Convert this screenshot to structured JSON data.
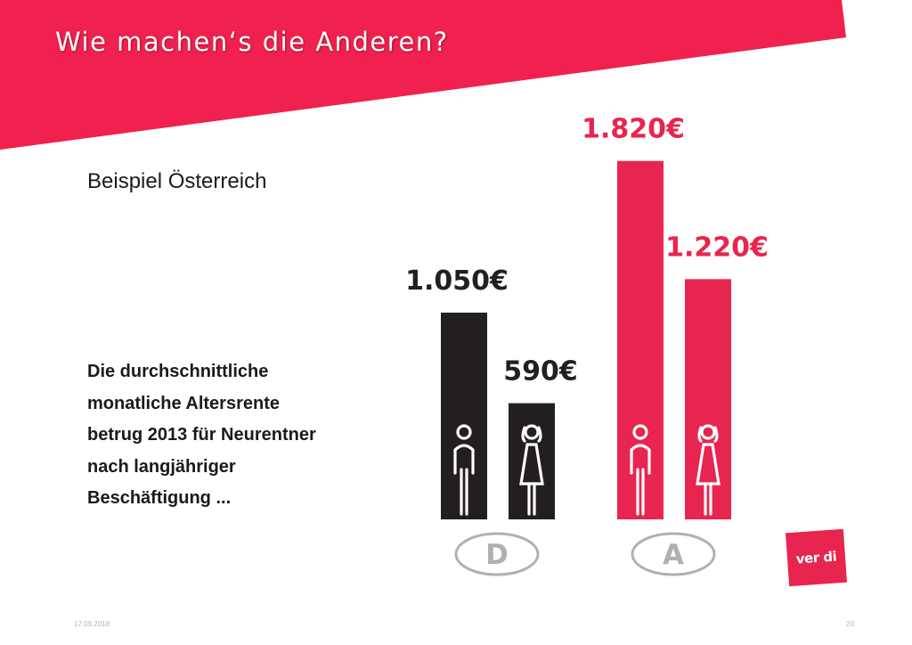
{
  "slide": {
    "title": "Wie machen‘s die Anderen?",
    "subtitle": "Beispiel Österreich",
    "body_lines": [
      "Die durchschnittliche",
      "monatliche Altersrente",
      "betrug 2013 für Neurentner",
      "nach langjähriger",
      "Beschäftigung ..."
    ],
    "footer_date": "17.09.2018",
    "page_number": "20",
    "logo_text": "ver di"
  },
  "colors": {
    "accent": "#e8254e",
    "dark": "#231f20",
    "country_oval": "#b0b0b0"
  },
  "chart_data": {
    "type": "bar",
    "title": "",
    "xlabel": "",
    "ylabel": "",
    "ylim": [
      0,
      1900
    ],
    "groups": [
      {
        "label": "D",
        "bars": [
          {
            "value": 1050,
            "label": "1.050€",
            "figure": "man",
            "color": "#231f20"
          },
          {
            "value": 590,
            "label": "590€",
            "figure": "woman",
            "color": "#231f20"
          }
        ]
      },
      {
        "label": "A",
        "bars": [
          {
            "value": 1820,
            "label": "1.820€",
            "figure": "man",
            "color": "#e8254e"
          },
          {
            "value": 1220,
            "label": "1.220€",
            "figure": "woman",
            "color": "#e8254e"
          }
        ]
      }
    ]
  }
}
